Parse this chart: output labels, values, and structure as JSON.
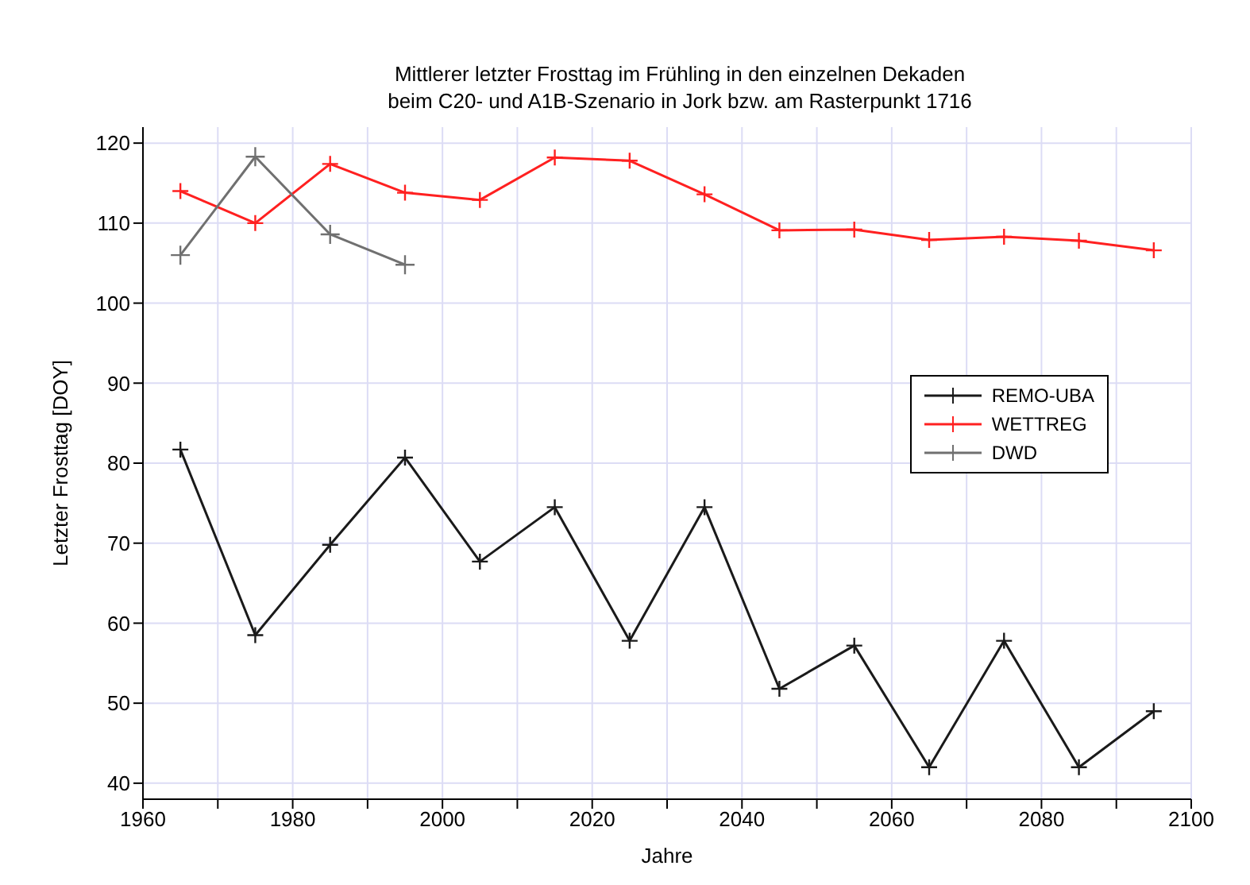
{
  "chart_data": {
    "type": "line",
    "title": "Mittlerer letzter Frosttag im Frühling in den einzelnen Dekaden\nbeim C20- und A1B-Szenario in Jork bzw. am Rasterpunkt 1716",
    "xlabel": "Jahre",
    "ylabel": "Letzter Frosttag [DOY]",
    "x": [
      1965,
      1975,
      1985,
      1995,
      2005,
      2015,
      2025,
      2035,
      2045,
      2055,
      2065,
      2075,
      2085,
      2095
    ],
    "series": [
      {
        "name": "REMO-UBA",
        "color": "#1a1a1a",
        "values": [
          81.7,
          58.5,
          69.8,
          80.7,
          67.7,
          74.5,
          57.8,
          74.5,
          51.8,
          57.2,
          42,
          57.8,
          42,
          49
        ]
      },
      {
        "name": "WETTREG",
        "color": "#ff2020",
        "values": [
          114,
          110,
          117.4,
          113.8,
          112.9,
          118.2,
          117.8,
          113.6,
          109.1,
          109.2,
          107.9,
          108.3,
          107.8,
          106.6
        ]
      },
      {
        "name": "DWD",
        "color": "#707070",
        "x": [
          1965,
          1975,
          1985,
          1995
        ],
        "values": [
          106,
          118.3,
          108.6,
          104.8
        ]
      }
    ],
    "xlim": [
      1960,
      2100
    ],
    "xticks": [
      1960,
      {
        "value": 1970,
        "label": null
      },
      1980,
      {
        "value": 1990,
        "label": null
      },
      2000,
      {
        "value": 2010,
        "label": null
      },
      2020,
      {
        "value": 2030,
        "label": null
      },
      2040,
      {
        "value": 2050,
        "label": null
      },
      2060,
      {
        "value": 2070,
        "label": null
      },
      2080,
      {
        "value": 2090,
        "label": null
      },
      2100
    ],
    "ylim": [
      38,
      122
    ],
    "yticks": [
      40,
      50,
      60,
      70,
      80,
      90,
      100,
      110,
      120
    ],
    "grid": true,
    "legend": "right",
    "marker": "cross",
    "line_style": "solid"
  }
}
